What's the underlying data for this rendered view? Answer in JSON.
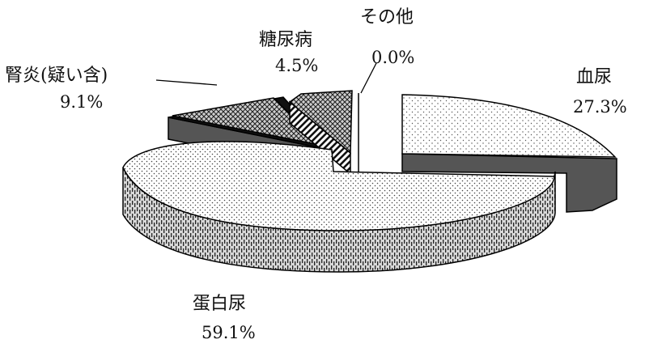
{
  "chart_data": {
    "type": "pie",
    "style": "3d-exploded",
    "title": "",
    "slices": [
      {
        "label": "蛋白尿",
        "value": 59.1,
        "value_label": "59.1%"
      },
      {
        "label": "血尿",
        "value": 27.3,
        "value_label": "27.3%"
      },
      {
        "label": "その他",
        "value": 0.0,
        "value_label": "0.0%"
      },
      {
        "label": "糖尿病",
        "value": 4.5,
        "value_label": "4.5%"
      },
      {
        "label": "腎炎(疑い含)",
        "value": 9.1,
        "value_label": "9.1%"
      }
    ],
    "legend": "none"
  }
}
